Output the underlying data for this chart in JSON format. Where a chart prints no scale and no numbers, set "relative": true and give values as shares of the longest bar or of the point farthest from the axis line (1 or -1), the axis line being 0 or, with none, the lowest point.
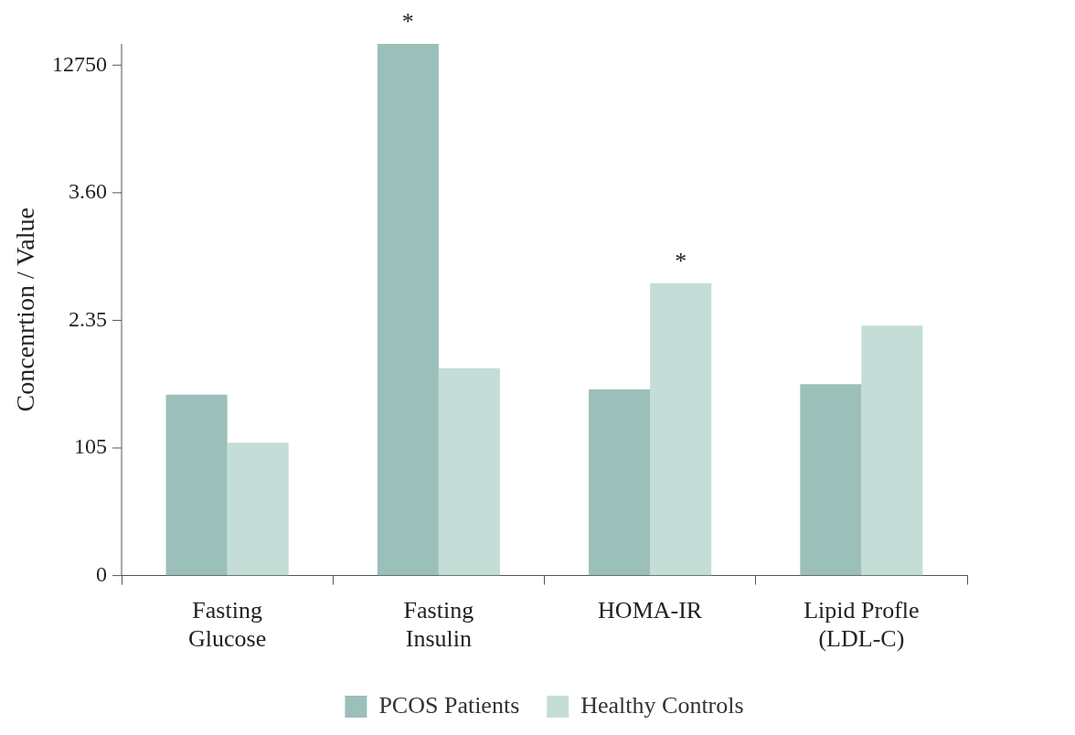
{
  "chart_data": {
    "type": "bar",
    "ylabel": "Concenrtion / Value",
    "relative": true,
    "categories": [
      "Fasting\nGlucose",
      "Fasting\nInsulin",
      "HOMA-IR",
      "Lipid Profle\n(LDL-C)"
    ],
    "series": [
      {
        "name": "PCOS Patients",
        "color": "#9bbfb9",
        "values": [
          0.34,
          1,
          0.35,
          0.36
        ]
      },
      {
        "name": "Healthy Controls",
        "color": "#c5ddd7",
        "values": [
          0.25,
          0.39,
          0.55,
          0.47
        ]
      }
    ],
    "annotations": [
      "0",
      "105",
      "2.35",
      "3.60",
      "12750",
      {
        "text": "*",
        "x": "Fasting\nInsulin",
        "y": 1
      },
      {
        "text": "*",
        "x": "HOMA-IR",
        "y": 0.55
      }
    ],
    "grid": false,
    "legend": "bottom"
  }
}
